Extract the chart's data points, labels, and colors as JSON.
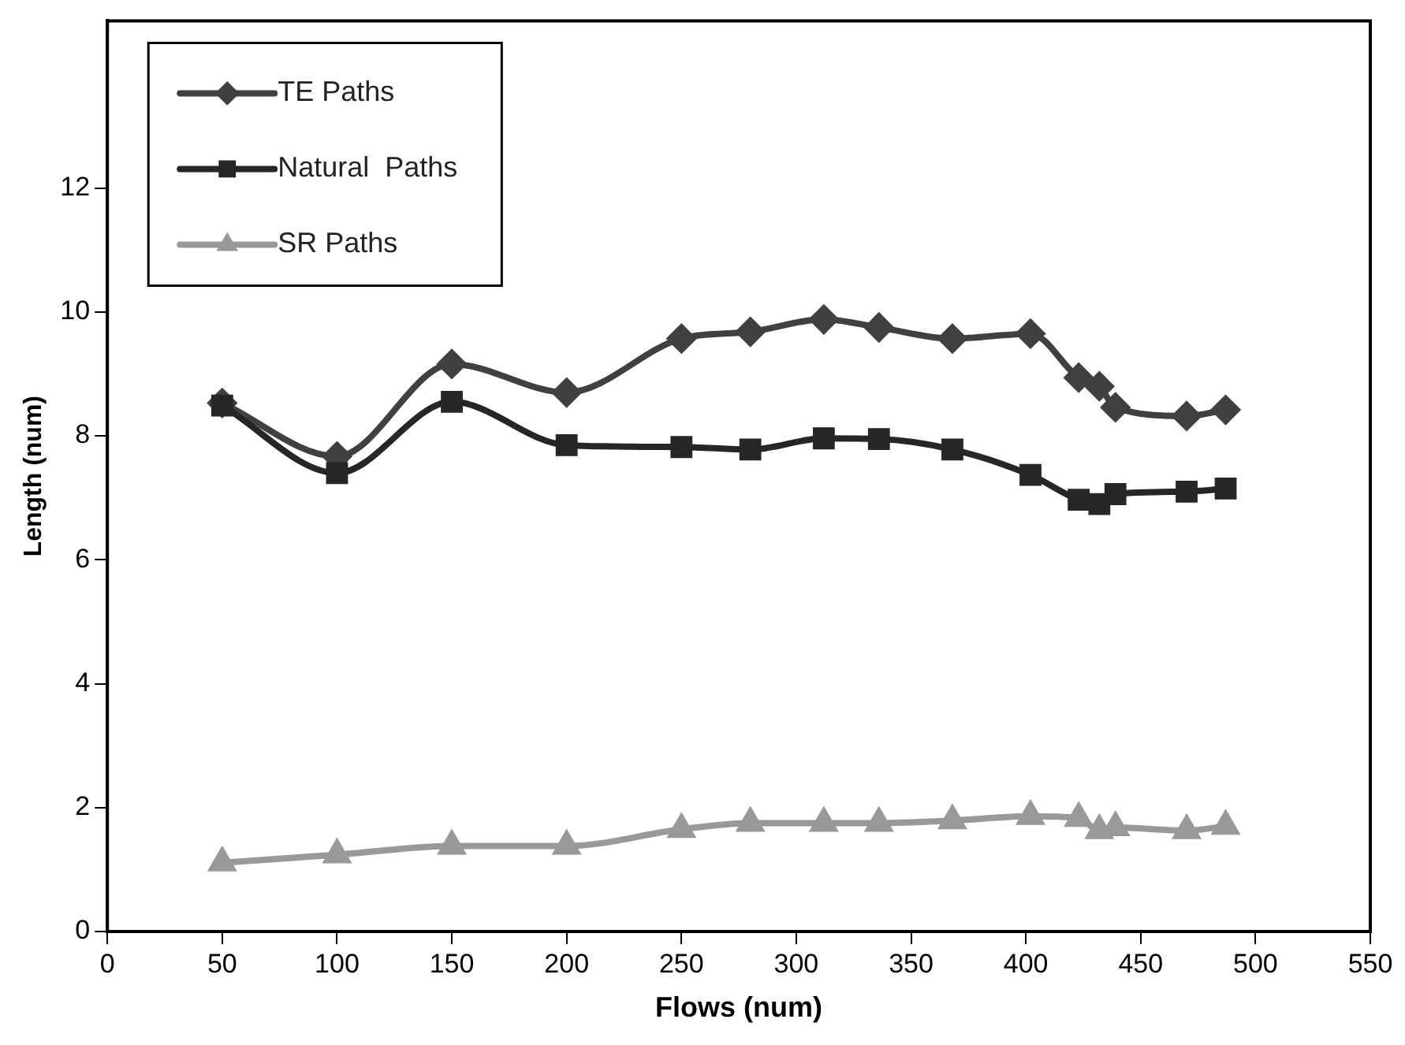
{
  "chart_data": {
    "type": "line",
    "xlabel": "Flows (num)",
    "ylabel": "Length (num)",
    "xlim": [
      0,
      550
    ],
    "xticks": [
      0,
      50,
      100,
      150,
      200,
      250,
      300,
      350,
      400,
      450,
      500,
      550
    ],
    "ylim": [
      0,
      14.7
    ],
    "yticks": [
      0,
      2,
      4,
      6,
      8,
      10,
      12
    ],
    "grid": false,
    "legend": "top left",
    "line_style": "solid",
    "x": [
      50,
      100,
      150,
      200,
      250,
      280,
      312,
      336,
      368,
      402,
      423,
      432,
      439,
      470,
      487
    ],
    "series": [
      {
        "name": "TE Paths",
        "color": "#404040",
        "marker": "diamond",
        "values": [
          8.53,
          7.67,
          9.16,
          8.7,
          9.57,
          9.68,
          9.88,
          9.75,
          9.57,
          9.65,
          8.94,
          8.8,
          8.46,
          8.32,
          8.42
        ]
      },
      {
        "name": "Natural  Paths",
        "color": "#262626",
        "marker": "square",
        "values": [
          8.49,
          7.4,
          8.55,
          7.85,
          7.82,
          7.78,
          7.96,
          7.95,
          7.78,
          7.37,
          6.97,
          6.9,
          7.06,
          7.1,
          7.15
        ]
      },
      {
        "name": "SR Paths",
        "color": "#999999",
        "marker": "triangle",
        "values": [
          1.11,
          1.24,
          1.38,
          1.38,
          1.65,
          1.75,
          1.75,
          1.75,
          1.79,
          1.86,
          1.83,
          1.63,
          1.68,
          1.63,
          1.7
        ]
      }
    ]
  }
}
